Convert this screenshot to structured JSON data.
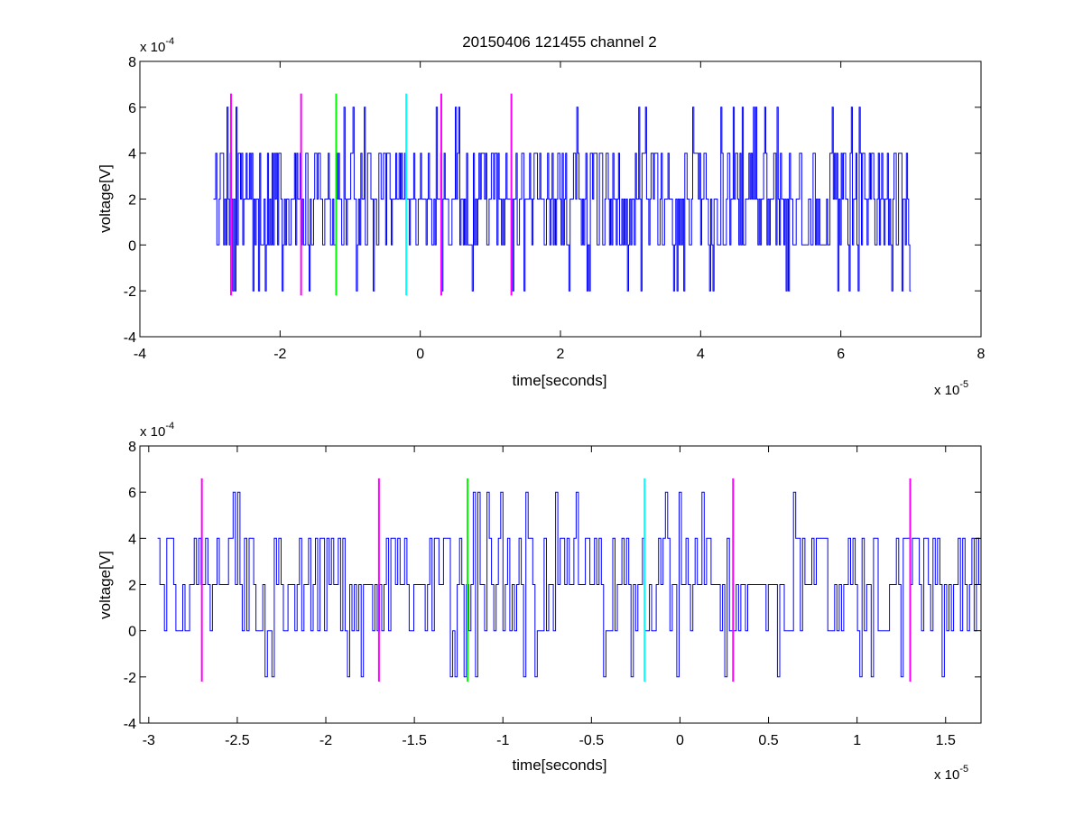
{
  "figure_title": "20150406 121455 channel 2",
  "colors": {
    "signal": "#0000ff",
    "marker_magenta": "#ff00ff",
    "marker_green": "#00ff00",
    "marker_cyan": "#00ffff",
    "axes": "#000000",
    "background": "#ffffff"
  },
  "chart_data": [
    {
      "type": "line",
      "title": "20150406 121455 channel 2",
      "xlabel": "time[seconds]",
      "ylabel": "voltage[V]",
      "x_exponent_label": "x 10",
      "x_exponent": "-5",
      "y_exponent_label": "x 10",
      "y_exponent": "-4",
      "xlim": [
        -4,
        8
      ],
      "ylim": [
        -4,
        8
      ],
      "xticks": [
        "-4",
        "-2",
        "0",
        "2",
        "4",
        "6",
        "8"
      ],
      "yticks": [
        "-4",
        "-2",
        "0",
        "2",
        "4",
        "6",
        "8"
      ],
      "grid": false,
      "signal": {
        "x_range": [
          -2.95,
          7.0
        ],
        "levels": [
          -2,
          0,
          2,
          4,
          6
        ],
        "note_unscaled": "values shown in axis units (x1e-5 s, x1e-4 V)"
      },
      "markers": [
        {
          "x": -2.7,
          "color": "magenta",
          "y": [
            -2.2,
            6.6
          ]
        },
        {
          "x": -1.7,
          "color": "magenta",
          "y": [
            -2.2,
            6.6
          ]
        },
        {
          "x": -1.2,
          "color": "green",
          "y": [
            -2.2,
            6.6
          ]
        },
        {
          "x": -0.2,
          "color": "cyan",
          "y": [
            -2.2,
            6.6
          ]
        },
        {
          "x": 0.3,
          "color": "magenta",
          "y": [
            -2.2,
            6.6
          ]
        },
        {
          "x": 1.3,
          "color": "magenta",
          "y": [
            -2.2,
            6.6
          ]
        }
      ]
    },
    {
      "type": "line",
      "title": "",
      "xlabel": "time[seconds]",
      "ylabel": "voltage[V]",
      "x_exponent_label": "x 10",
      "x_exponent": "-5",
      "y_exponent_label": "x 10",
      "y_exponent": "-4",
      "xlim": [
        -3.05,
        1.7
      ],
      "ylim": [
        -4,
        8
      ],
      "xticks": [
        "-3",
        "-2.5",
        "-2",
        "-1.5",
        "-1",
        "-0.5",
        "0",
        "0.5",
        "1",
        "1.5"
      ],
      "xtick_values": [
        -3,
        -2.5,
        -2,
        -1.5,
        -1,
        -0.5,
        0,
        0.5,
        1,
        1.5
      ],
      "yticks": [
        "-4",
        "-2",
        "0",
        "2",
        "4",
        "6",
        "8"
      ],
      "grid": false,
      "signal": {
        "x_range": [
          -2.95,
          1.7
        ],
        "levels": [
          -2,
          0,
          2,
          4,
          6
        ]
      },
      "markers": [
        {
          "x": -2.7,
          "color": "magenta",
          "y": [
            -2.2,
            6.6
          ]
        },
        {
          "x": -1.7,
          "color": "magenta",
          "y": [
            -2.2,
            6.6
          ]
        },
        {
          "x": -1.2,
          "color": "green",
          "y": [
            -2.2,
            6.6
          ]
        },
        {
          "x": -0.2,
          "color": "cyan",
          "y": [
            -2.2,
            6.6
          ]
        },
        {
          "x": 0.3,
          "color": "magenta",
          "y": [
            -2.2,
            6.6
          ]
        },
        {
          "x": 1.3,
          "color": "magenta",
          "y": [
            -2.2,
            6.6
          ]
        }
      ]
    }
  ]
}
